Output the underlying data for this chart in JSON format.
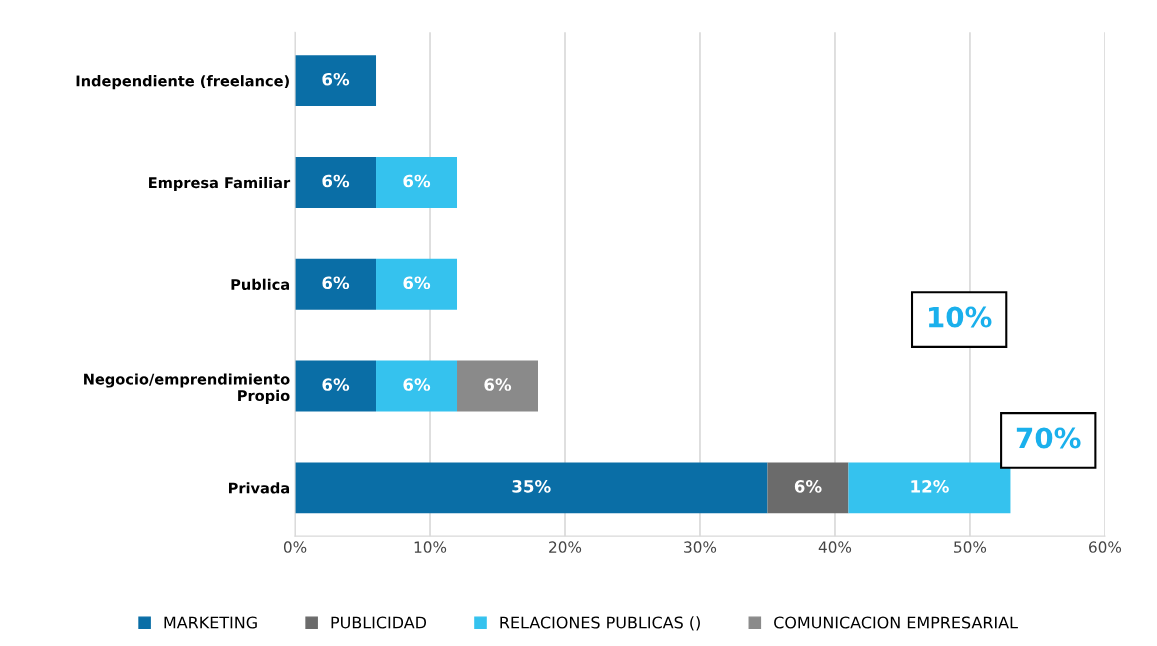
{
  "chart_data": {
    "type": "bar",
    "orientation": "horizontal",
    "stacked": true,
    "categories": [
      "Independiente (freelance)",
      "Empresa Familiar",
      "Publica",
      "Negocio/emprendimiento\nPropio",
      "Privada"
    ],
    "series": [
      {
        "name": "MARKETING",
        "color": "#0a6ea6",
        "values": [
          6,
          6,
          6,
          6,
          35
        ],
        "value_labels": [
          "6%",
          "6%",
          "6%",
          "6%",
          "35%"
        ]
      },
      {
        "name": "PUBLICIDAD",
        "color": "#6b6b6b",
        "values": [
          null,
          null,
          null,
          null,
          6
        ],
        "value_labels": [
          null,
          null,
          null,
          null,
          "6%"
        ]
      },
      {
        "name": "RELACIONES PUBLICAS ()",
        "color": "#35c2ee",
        "values": [
          null,
          6,
          6,
          6,
          12
        ],
        "value_labels": [
          null,
          "6%",
          "6%",
          "6%",
          "12%"
        ]
      },
      {
        "name": "COMUNICACION EMPRESARIAL",
        "color": "#8a8a8a",
        "values": [
          null,
          null,
          null,
          6,
          null
        ],
        "value_labels": [
          null,
          null,
          null,
          "6%",
          null
        ]
      }
    ],
    "xlim": [
      0,
      60
    ],
    "xticks": [
      {
        "value": 0,
        "label": "0%"
      },
      {
        "value": 10,
        "label": "10%"
      },
      {
        "value": 20,
        "label": "20%"
      },
      {
        "value": 30,
        "label": "30%"
      },
      {
        "value": 40,
        "label": "40%"
      },
      {
        "value": 50,
        "label": "50%"
      },
      {
        "value": 60,
        "label": "60%"
      }
    ],
    "grid": "x",
    "legend": "bottom",
    "annotations": [
      "10%",
      "70%"
    ]
  }
}
